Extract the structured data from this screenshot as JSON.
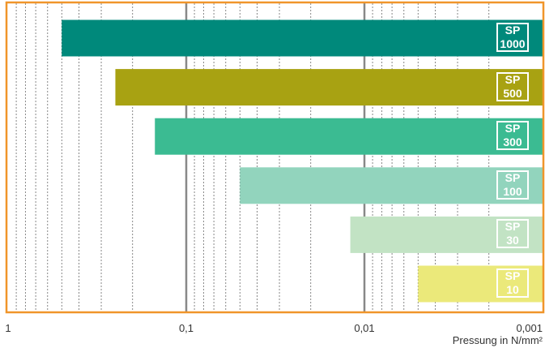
{
  "chart_data": {
    "type": "range-bar",
    "categories": [
      "SP 1000",
      "SP 500",
      "SP 300",
      "SP 100",
      "SP 30",
      "SP 10"
    ],
    "ranges": [
      [
        0.5,
        0.001
      ],
      [
        0.25,
        0.001
      ],
      [
        0.15,
        0.001
      ],
      [
        0.05,
        0.001
      ],
      [
        0.012,
        0.001
      ],
      [
        0.005,
        0.001
      ]
    ],
    "colors": [
      "#00897b",
      "#a8a212",
      "#3bbb92",
      "#92d4bd",
      "#c2e3c4",
      "#ebe97a"
    ],
    "x_label": "Pressung in N/mm²",
    "xlim": [
      1,
      0.001
    ],
    "xscale": "log",
    "xticks": [
      1,
      {
        "value": 0.1,
        "label": "0,1"
      },
      {
        "value": 0.01,
        "label": "0,01"
      },
      {
        "value": 0.001,
        "label": "0,001"
      }
    ],
    "xminorticks": [
      0.9,
      0.8,
      0.7,
      0.6,
      0.5,
      0.4,
      0.3,
      0.2,
      0.09,
      0.08,
      0.07,
      0.06,
      0.05,
      0.04,
      0.03,
      0.02,
      0.009,
      0.008,
      0.007,
      0.006,
      0.005,
      0.004,
      0.003,
      0.002
    ],
    "frame_color": "#f0952a"
  }
}
